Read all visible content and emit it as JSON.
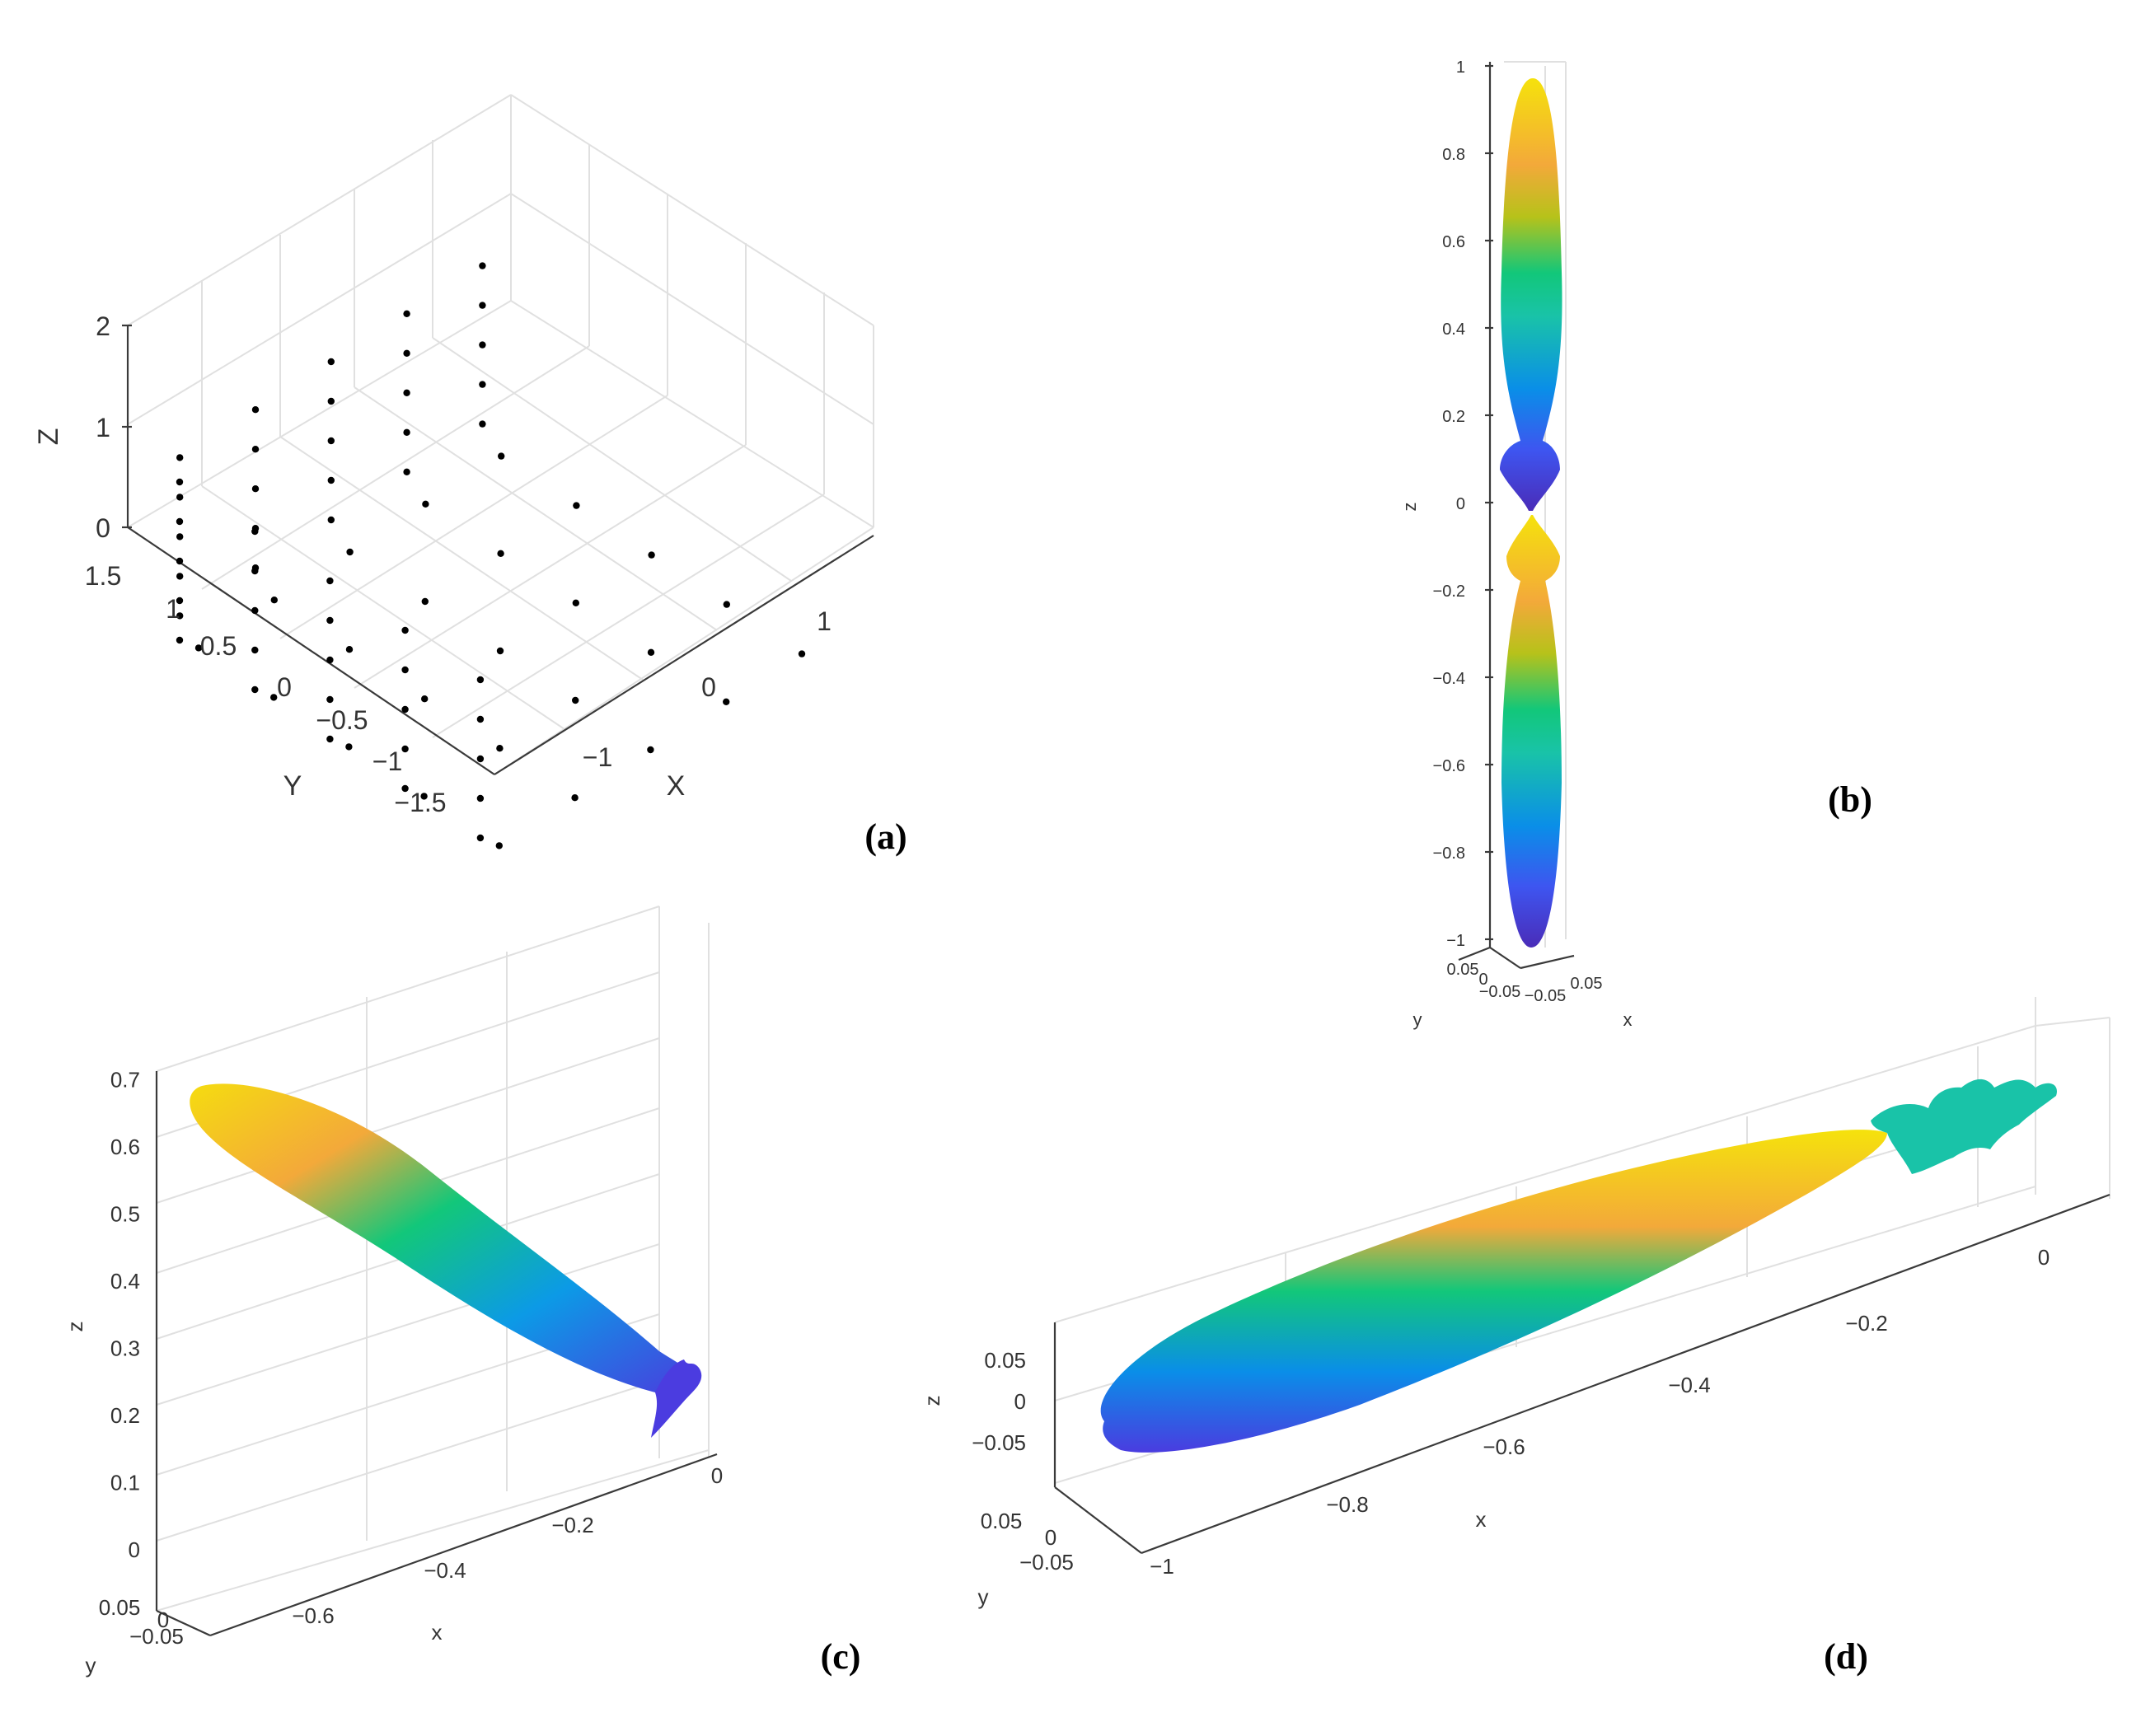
{
  "figure": {
    "panels": [
      "(a)",
      "(b)",
      "(c)",
      "(d)"
    ]
  },
  "chart_data": [
    {
      "panel": "(a)",
      "type": "scatter",
      "dimensions": 3,
      "xlabel": "X",
      "ylabel": "Y",
      "zlabel": "Z",
      "x_ticks": [
        "−1",
        "0",
        "1"
      ],
      "y_ticks": [
        "−1.5",
        "−1",
        "−0.5",
        "0",
        "0.5",
        "1",
        "1.5"
      ],
      "z_ticks": [
        "0",
        "1",
        "2"
      ],
      "xlim": [
        -1.5,
        1.5
      ],
      "ylim": [
        -1.5,
        1.5
      ],
      "zlim": [
        0,
        2
      ],
      "grid": true,
      "marker_color": "#000000",
      "description_points": {
        "floor_z0_grid_x": [
          -1.2,
          -0.6,
          0,
          0.6,
          1.2
        ],
        "floor_z0_grid_y": [
          -1.2,
          -0.6,
          0,
          0.6,
          1.2
        ],
        "wall_levels_z": [
          0.2,
          0.6,
          1.0,
          1.4,
          1.8
        ]
      }
    },
    {
      "panel": "(b)",
      "type": "surface",
      "shape": "radiation-pattern",
      "xlabel": "x",
      "ylabel": "y",
      "zlabel": "z",
      "z_ticks": [
        "−1",
        "−0.8",
        "−0.6",
        "−0.4",
        "−0.2",
        "0",
        "0.2",
        "0.4",
        "0.6",
        "0.8",
        "1"
      ],
      "x_ticks": [
        "−0.05",
        "0.05"
      ],
      "y_ticks": [
        "0.05",
        "0",
        "−0.05"
      ],
      "zlim": [
        -1,
        1
      ],
      "main_lobes": [
        {
          "direction": "+z",
          "extent": 0.97
        },
        {
          "direction": "-z",
          "extent": -0.98
        }
      ],
      "colormap": "parula"
    },
    {
      "panel": "(c)",
      "type": "surface",
      "shape": "radiation-pattern",
      "xlabel": "x",
      "ylabel": "y",
      "zlabel": "z",
      "z_ticks": [
        "0",
        "0.1",
        "0.2",
        "0.3",
        "0.4",
        "0.5",
        "0.6",
        "0.7"
      ],
      "x_ticks": [
        "−0.6",
        "−0.4",
        "−0.2",
        "0"
      ],
      "y_ticks": [
        "0.05",
        "0",
        "−0.05"
      ],
      "zlim": [
        0,
        0.7
      ],
      "main_lobe": {
        "tip_x": -0.68,
        "tip_z": 0.66,
        "origin_x": -0.03,
        "origin_z": 0.24
      },
      "colormap": "parula"
    },
    {
      "panel": "(d)",
      "type": "surface",
      "shape": "radiation-pattern",
      "xlabel": "x",
      "ylabel": "y",
      "zlabel": "z",
      "x_ticks": [
        "−1",
        "−0.8",
        "−0.6",
        "−0.4",
        "−0.2",
        "0"
      ],
      "y_ticks": [
        "0.05",
        "0",
        "−0.05"
      ],
      "z_ticks": [
        "−0.05",
        "0",
        "0.05"
      ],
      "xlim": [
        -1,
        0
      ],
      "main_lobe": {
        "tip_x": -1.0,
        "origin_x": -0.1
      },
      "colormap": "parula"
    }
  ]
}
